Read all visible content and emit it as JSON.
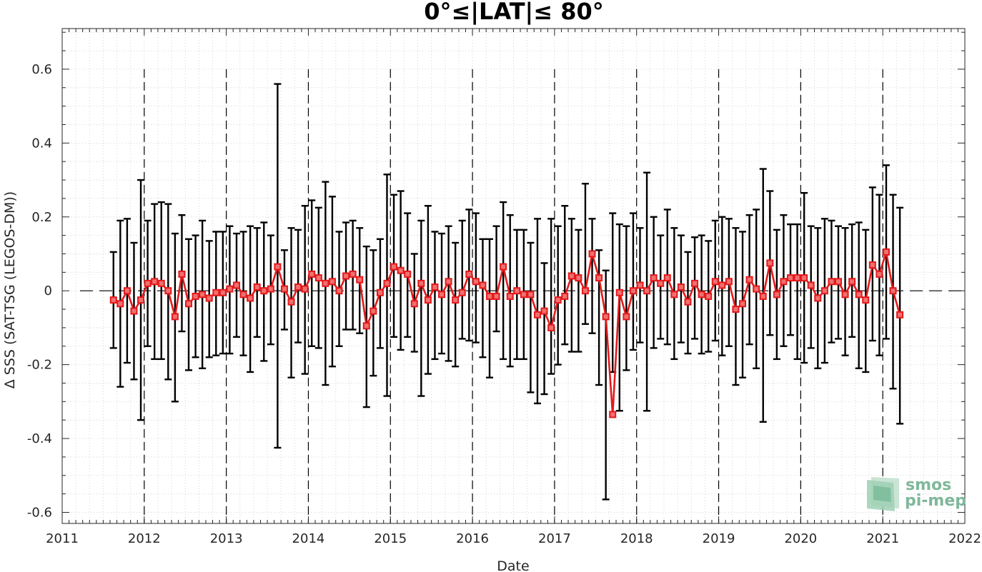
{
  "chart_data": {
    "type": "line",
    "title": "0°≤|LAT|≤ 80°",
    "xlabel": "Date",
    "ylabel": "Δ SSS (SAT-TSG (LEGOS-DM))",
    "xlim": [
      "2011-01-01",
      "2022-01-01"
    ],
    "ylim": [
      -0.63,
      0.71
    ],
    "x_ticks": [
      "2011",
      "2012",
      "2013",
      "2014",
      "2015",
      "2016",
      "2017",
      "2018",
      "2019",
      "2020",
      "2021",
      "2022"
    ],
    "y_ticks": [
      -0.6,
      -0.4,
      -0.2,
      0,
      0.2,
      0.4,
      0.6
    ],
    "y_tick_labels": [
      "-0.6",
      "-0.4",
      "-0.2",
      "0",
      "0.2",
      "0.4",
      "0.6"
    ],
    "grid": "minor dotted",
    "year_dividers": [
      "2012",
      "2013",
      "2014",
      "2015",
      "2016",
      "2017",
      "2018",
      "2019",
      "2020",
      "2021"
    ],
    "zero_line": 0,
    "colors": {
      "line": "#e41a1c",
      "errorbar": "#000000",
      "marker_fill": "#f07070"
    },
    "series": [
      {
        "dates": [
          "2011-08",
          "2011-09",
          "2011-10",
          "2011-11",
          "2011-12",
          "2012-01",
          "2012-02",
          "2012-03",
          "2012-04",
          "2012-05",
          "2012-06",
          "2012-07",
          "2012-08",
          "2012-09",
          "2012-10",
          "2012-11",
          "2012-12",
          "2013-01",
          "2013-02",
          "2013-03",
          "2013-04",
          "2013-05",
          "2013-06",
          "2013-07",
          "2013-08",
          "2013-09",
          "2013-10",
          "2013-11",
          "2013-12",
          "2014-01",
          "2014-02",
          "2014-03",
          "2014-04",
          "2014-05",
          "2014-06",
          "2014-07",
          "2014-08",
          "2014-09",
          "2014-10",
          "2014-11",
          "2014-12",
          "2015-01",
          "2015-02",
          "2015-03",
          "2015-04",
          "2015-05",
          "2015-06",
          "2015-07",
          "2015-08",
          "2015-09",
          "2015-10",
          "2015-11",
          "2015-12",
          "2016-01",
          "2016-02",
          "2016-03",
          "2016-04",
          "2016-05",
          "2016-06",
          "2016-07",
          "2016-08",
          "2016-09",
          "2016-10",
          "2016-11",
          "2016-12",
          "2017-01",
          "2017-02",
          "2017-03",
          "2017-04",
          "2017-05",
          "2017-06",
          "2017-07",
          "2017-08",
          "2017-09",
          "2017-10",
          "2017-11",
          "2017-12",
          "2018-01",
          "2018-02",
          "2018-03",
          "2018-04",
          "2018-05",
          "2018-06",
          "2018-07",
          "2018-08",
          "2018-09",
          "2018-10",
          "2018-11",
          "2018-12",
          "2019-01",
          "2019-02",
          "2019-03",
          "2019-04",
          "2019-05",
          "2019-06",
          "2019-07",
          "2019-08",
          "2019-09",
          "2019-10",
          "2019-11",
          "2019-12",
          "2020-01",
          "2020-02",
          "2020-03",
          "2020-04",
          "2020-05",
          "2020-06",
          "2020-07",
          "2020-08",
          "2020-09",
          "2020-10",
          "2020-11",
          "2020-12",
          "2021-01",
          "2021-02",
          "2021-03"
        ],
        "values": [
          -0.025,
          -0.035,
          0.0,
          -0.055,
          -0.025,
          0.02,
          0.025,
          0.02,
          0.0,
          -0.07,
          0.045,
          -0.035,
          -0.015,
          -0.01,
          -0.02,
          -0.005,
          -0.005,
          0.005,
          0.015,
          -0.01,
          -0.02,
          0.01,
          0.0,
          0.005,
          0.065,
          0.005,
          -0.03,
          0.01,
          0.005,
          0.045,
          0.035,
          0.02,
          0.025,
          0.0,
          0.04,
          0.045,
          0.03,
          -0.095,
          -0.055,
          -0.005,
          0.02,
          0.065,
          0.055,
          0.045,
          -0.035,
          0.02,
          -0.025,
          0.01,
          -0.01,
          0.025,
          -0.025,
          -0.005,
          0.045,
          0.025,
          0.015,
          -0.015,
          -0.015,
          0.065,
          -0.015,
          0.0,
          -0.01,
          -0.01,
          -0.065,
          -0.055,
          -0.1,
          -0.025,
          -0.015,
          0.04,
          0.035,
          0.0,
          0.1,
          0.035,
          -0.07,
          -0.335,
          -0.005,
          -0.07,
          0.0,
          0.015,
          0.0,
          0.035,
          0.02,
          0.035,
          -0.01,
          0.01,
          -0.03,
          0.02,
          -0.01,
          -0.015,
          0.025,
          0.015,
          0.025,
          -0.05,
          -0.035,
          0.03,
          0.005,
          -0.015,
          0.075,
          -0.01,
          0.025,
          0.035,
          0.035,
          0.035,
          0.015,
          -0.02,
          0.0,
          0.025,
          0.025,
          -0.01,
          0.025,
          -0.01,
          -0.025,
          0.07,
          0.045,
          0.105,
          0.0,
          -0.065
        ],
        "err_low": [
          -0.155,
          -0.26,
          -0.195,
          -0.24,
          -0.35,
          -0.15,
          -0.185,
          -0.185,
          -0.24,
          -0.3,
          -0.11,
          -0.215,
          -0.18,
          -0.21,
          -0.18,
          -0.175,
          -0.17,
          -0.17,
          -0.125,
          -0.175,
          -0.22,
          -0.125,
          -0.19,
          -0.145,
          -0.425,
          -0.105,
          -0.235,
          -0.14,
          -0.225,
          -0.15,
          -0.155,
          -0.255,
          -0.205,
          -0.15,
          -0.105,
          -0.105,
          -0.115,
          -0.315,
          -0.23,
          -0.155,
          -0.285,
          -0.125,
          -0.16,
          -0.125,
          -0.165,
          -0.285,
          -0.225,
          -0.185,
          -0.17,
          -0.19,
          -0.205,
          -0.13,
          -0.135,
          -0.14,
          -0.18,
          -0.235,
          -0.11,
          -0.185,
          -0.205,
          -0.185,
          -0.185,
          -0.275,
          -0.305,
          -0.28,
          -0.225,
          -0.2,
          -0.145,
          -0.165,
          -0.165,
          -0.09,
          -0.115,
          -0.255,
          -0.565,
          -0.22,
          -0.325,
          -0.215,
          -0.16,
          -0.14,
          -0.325,
          -0.155,
          -0.13,
          -0.145,
          -0.185,
          -0.14,
          -0.17,
          -0.13,
          -0.17,
          -0.165,
          -0.135,
          -0.175,
          -0.15,
          -0.255,
          -0.235,
          -0.145,
          -0.21,
          -0.355,
          -0.12,
          -0.185,
          -0.15,
          -0.12,
          -0.185,
          -0.195,
          -0.155,
          -0.21,
          -0.195,
          -0.14,
          -0.13,
          -0.175,
          -0.125,
          -0.21,
          -0.22,
          -0.135,
          -0.175,
          -0.13,
          -0.265,
          -0.36
        ],
        "err_high": [
          0.105,
          0.19,
          0.195,
          0.13,
          0.3,
          0.19,
          0.235,
          0.24,
          0.235,
          0.155,
          0.205,
          0.14,
          0.15,
          0.19,
          0.135,
          0.16,
          0.16,
          0.175,
          0.155,
          0.16,
          0.175,
          0.17,
          0.185,
          0.15,
          0.56,
          0.11,
          0.17,
          0.165,
          0.23,
          0.245,
          0.225,
          0.295,
          0.255,
          0.16,
          0.185,
          0.19,
          0.17,
          0.12,
          0.11,
          0.14,
          0.315,
          0.26,
          0.27,
          0.21,
          0.1,
          0.19,
          0.23,
          0.16,
          0.155,
          0.175,
          0.13,
          0.19,
          0.22,
          0.21,
          0.14,
          0.14,
          0.175,
          0.24,
          0.205,
          0.165,
          0.165,
          0.13,
          0.195,
          0.075,
          0.195,
          0.175,
          0.23,
          0.195,
          0.165,
          0.29,
          0.195,
          0.11,
          0.055,
          0.21,
          0.18,
          0.175,
          0.21,
          0.17,
          0.32,
          0.2,
          0.15,
          0.22,
          0.17,
          0.15,
          0.105,
          0.145,
          0.15,
          0.135,
          0.19,
          0.2,
          0.195,
          0.17,
          0.16,
          0.205,
          0.22,
          0.33,
          0.27,
          0.165,
          0.205,
          0.18,
          0.18,
          0.265,
          0.175,
          0.17,
          0.195,
          0.19,
          0.175,
          0.17,
          0.18,
          0.185,
          0.165,
          0.28,
          0.26,
          0.34,
          0.26,
          0.225
        ]
      }
    ]
  },
  "logo": {
    "line1": "smos",
    "line2": "pi-mep"
  }
}
